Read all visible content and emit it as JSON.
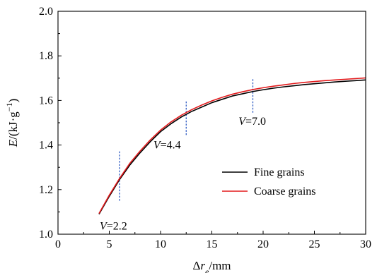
{
  "chart_data": {
    "type": "line",
    "xlabel": {
      "delta": "Δ",
      "var": "r",
      "sub": "e",
      "unit": "/mm"
    },
    "ylabel": {
      "var": "E",
      "unit_open": "/(kJ·g",
      "sup": "−1",
      "unit_close": ")"
    },
    "xlim": [
      0,
      30
    ],
    "ylim": [
      1.0,
      2.0
    ],
    "xticks": [
      0,
      5,
      10,
      15,
      20,
      25,
      30
    ],
    "yticks": [
      "1.0",
      "1.2",
      "1.4",
      "1.6",
      "1.8",
      "2.0"
    ],
    "grid": false,
    "legend_position": "lower-right",
    "series": [
      {
        "name": "Fine grains",
        "color": "#000000",
        "x": [
          4,
          5,
          6,
          7,
          8,
          9,
          10,
          11,
          12,
          13,
          14,
          15,
          16,
          17,
          18,
          19,
          20,
          21,
          22,
          23,
          24,
          25,
          26,
          27,
          28,
          29,
          30
        ],
        "y": [
          1.09,
          1.17,
          1.245,
          1.31,
          1.365,
          1.415,
          1.46,
          1.495,
          1.525,
          1.55,
          1.57,
          1.59,
          1.605,
          1.62,
          1.63,
          1.64,
          1.648,
          1.655,
          1.661,
          1.666,
          1.671,
          1.675,
          1.679,
          1.683,
          1.686,
          1.689,
          1.692
        ]
      },
      {
        "name": "Coarse grains",
        "color": "#e31a1c",
        "x": [
          4,
          5,
          6,
          7,
          8,
          9,
          10,
          11,
          12,
          13,
          14,
          15,
          16,
          17,
          18,
          19,
          20,
          21,
          22,
          23,
          24,
          25,
          26,
          27,
          28,
          29,
          30
        ],
        "y": [
          1.093,
          1.175,
          1.25,
          1.318,
          1.373,
          1.423,
          1.467,
          1.503,
          1.533,
          1.558,
          1.579,
          1.598,
          1.614,
          1.628,
          1.639,
          1.649,
          1.657,
          1.664,
          1.67,
          1.676,
          1.681,
          1.685,
          1.689,
          1.692,
          1.695,
          1.698,
          1.701
        ]
      }
    ],
    "annotations": [
      {
        "var": "V",
        "text": "=2.2",
        "x": 6.0
      },
      {
        "var": "V",
        "text": "=4.4",
        "x": 12.5
      },
      {
        "var": "V",
        "text": "=7.0",
        "x": 19.0
      }
    ]
  }
}
